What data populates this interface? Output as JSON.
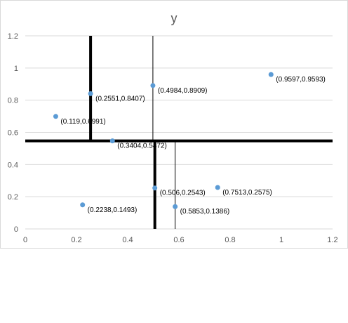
{
  "chart_data": {
    "type": "scatter",
    "title": "y",
    "xlabel": "",
    "ylabel": "",
    "xlim": [
      0,
      1.2
    ],
    "ylim": [
      0,
      1.2
    ],
    "x_ticks": [
      "0",
      "0.2",
      "0.4",
      "0.6",
      "0.8",
      "1",
      "1.2"
    ],
    "y_ticks": [
      "0",
      "0.2",
      "0.4",
      "0.6",
      "0.8",
      "1",
      "1.2"
    ],
    "grid": "horizontal",
    "legend": "none",
    "marker_color": "#5b9bd5",
    "gridline_color": "#d9d9d9",
    "points": [
      {
        "x": 0.119,
        "y": 0.6991,
        "label": "(0.119,0.6991)"
      },
      {
        "x": 0.2551,
        "y": 0.8407,
        "label": "(0.2551,0.8407)"
      },
      {
        "x": 0.4984,
        "y": 0.8909,
        "label": "(0.4984,0.8909)"
      },
      {
        "x": 0.9597,
        "y": 0.9593,
        "label": "(0.9597,0.9593)"
      },
      {
        "x": 0.3404,
        "y": 0.5472,
        "label": "(0.3404,0.5472)"
      },
      {
        "x": 0.506,
        "y": 0.2543,
        "label": "(0.506,0.2543)"
      },
      {
        "x": 0.7513,
        "y": 0.2575,
        "label": "(0.7513,0.2575)"
      },
      {
        "x": 0.2238,
        "y": 0.1493,
        "label": "(0.2238,0.1493)"
      },
      {
        "x": 0.5853,
        "y": 0.1386,
        "label": "(0.5853,0.1386)"
      }
    ],
    "divider_lines": [
      {
        "orientation": "horizontal",
        "y": 0.5472,
        "x_from": 0,
        "x_to": 1.2,
        "weight": "heavy"
      },
      {
        "orientation": "vertical",
        "x": 0.2551,
        "y_from": 0.5472,
        "y_to": 1.2,
        "weight": "heavy"
      },
      {
        "orientation": "vertical",
        "x": 0.4984,
        "y_from": 0.5472,
        "y_to": 1.2,
        "weight": "thin"
      },
      {
        "orientation": "vertical",
        "x": 0.506,
        "y_from": 0,
        "y_to": 0.5472,
        "weight": "heavy"
      },
      {
        "orientation": "vertical",
        "x": 0.5853,
        "y_from": 0,
        "y_to": 0.5472,
        "weight": "thin"
      }
    ]
  }
}
